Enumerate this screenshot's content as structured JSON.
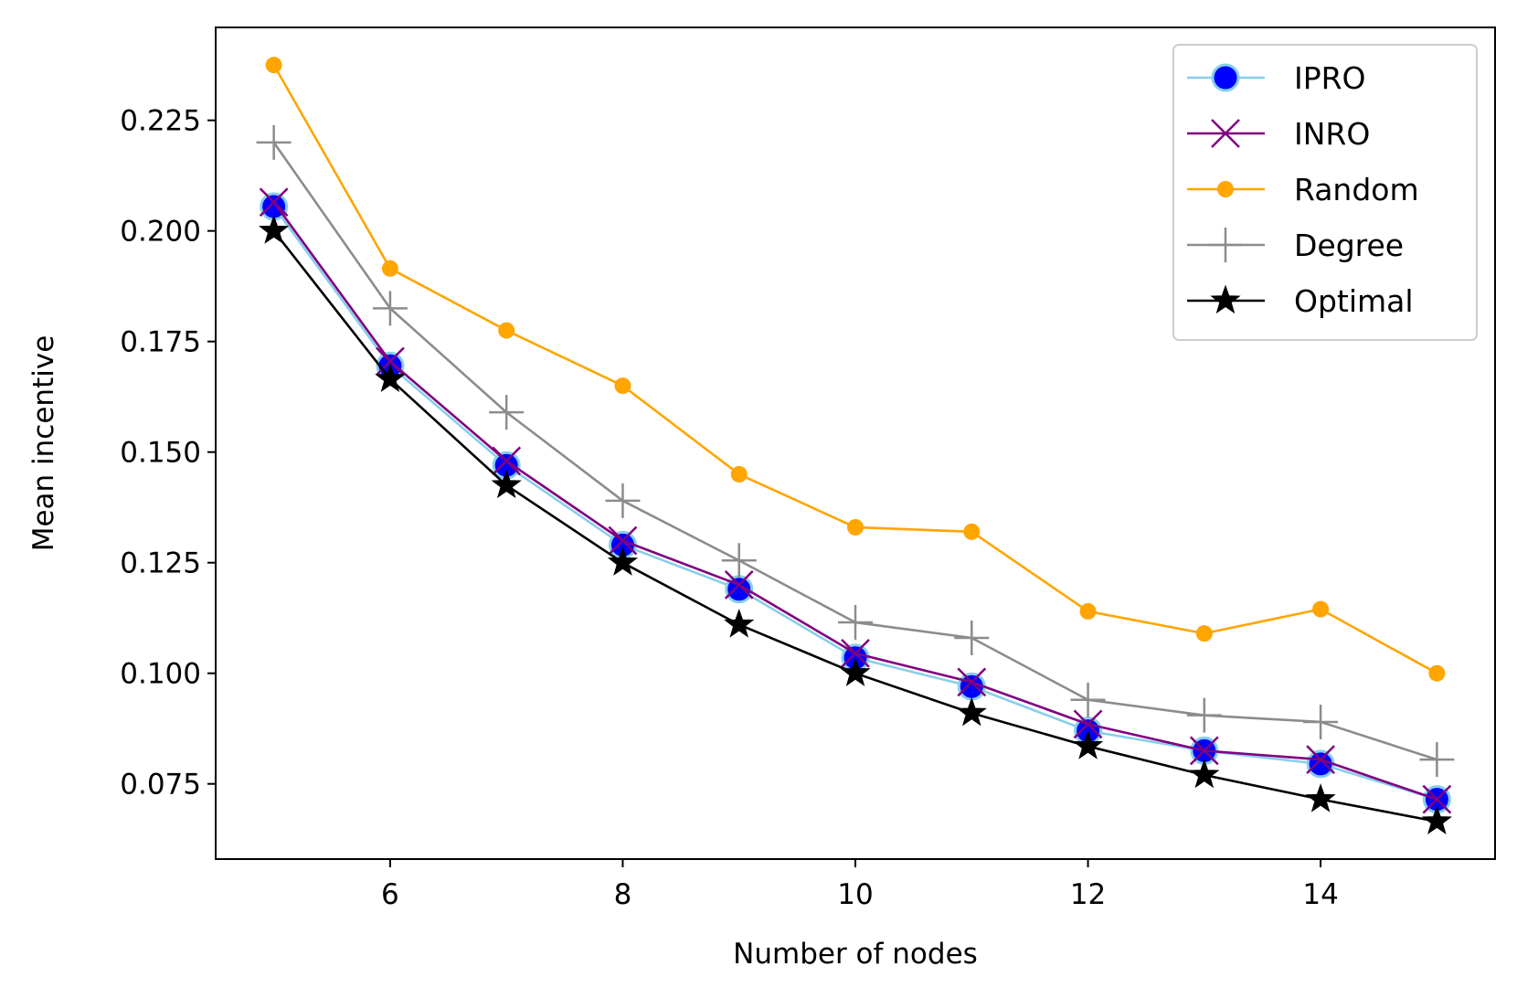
{
  "chart_data": {
    "type": "line",
    "title": "",
    "xlabel": "Number of nodes",
    "ylabel": "Mean incentive",
    "xlim": [
      4.5,
      15.5
    ],
    "ylim": [
      0.058,
      0.246
    ],
    "x": [
      5,
      6,
      7,
      8,
      9,
      10,
      11,
      12,
      13,
      14,
      15
    ],
    "xticks": [
      6,
      8,
      10,
      12,
      14
    ],
    "xtick_labels": [
      "6",
      "8",
      "10",
      "12",
      "14"
    ],
    "yticks": [
      0.075,
      0.1,
      0.125,
      0.15,
      0.175,
      0.2,
      0.225
    ],
    "ytick_labels": [
      "0.075",
      "0.100",
      "0.125",
      "0.150",
      "0.175",
      "0.200",
      "0.225"
    ],
    "grid": false,
    "legend_position": "top-right",
    "series": [
      {
        "name": "IPRO",
        "color": "#0000ff",
        "edge_color": "#87ceeb",
        "line_color": "#87ceeb",
        "marker": "circle",
        "values": [
          0.2055,
          0.1695,
          0.147,
          0.129,
          0.119,
          0.1035,
          0.097,
          0.087,
          0.0825,
          0.0795,
          0.0715
        ]
      },
      {
        "name": "INRO",
        "color": "#800080",
        "line_color": "#800080",
        "marker": "x",
        "values": [
          0.2065,
          0.1705,
          0.148,
          0.13,
          0.12,
          0.1045,
          0.098,
          0.0885,
          0.0825,
          0.0805,
          0.0715
        ]
      },
      {
        "name": "Random",
        "color": "#ffa500",
        "line_color": "#ffa500",
        "marker": "dot",
        "values": [
          0.2375,
          0.1915,
          0.1775,
          0.165,
          0.145,
          0.133,
          0.132,
          0.114,
          0.109,
          0.1145,
          0.1
        ]
      },
      {
        "name": "Degree",
        "color": "#8c8c8c",
        "line_color": "#8c8c8c",
        "marker": "plus",
        "values": [
          0.22,
          0.1825,
          0.159,
          0.139,
          0.1255,
          0.1115,
          0.108,
          0.094,
          0.0905,
          0.089,
          0.0805
        ]
      },
      {
        "name": "Optimal",
        "color": "#000000",
        "line_color": "#000000",
        "marker": "star",
        "values": [
          0.2,
          0.1665,
          0.1425,
          0.125,
          0.111,
          0.1,
          0.091,
          0.0835,
          0.077,
          0.0715,
          0.0665
        ]
      }
    ]
  }
}
